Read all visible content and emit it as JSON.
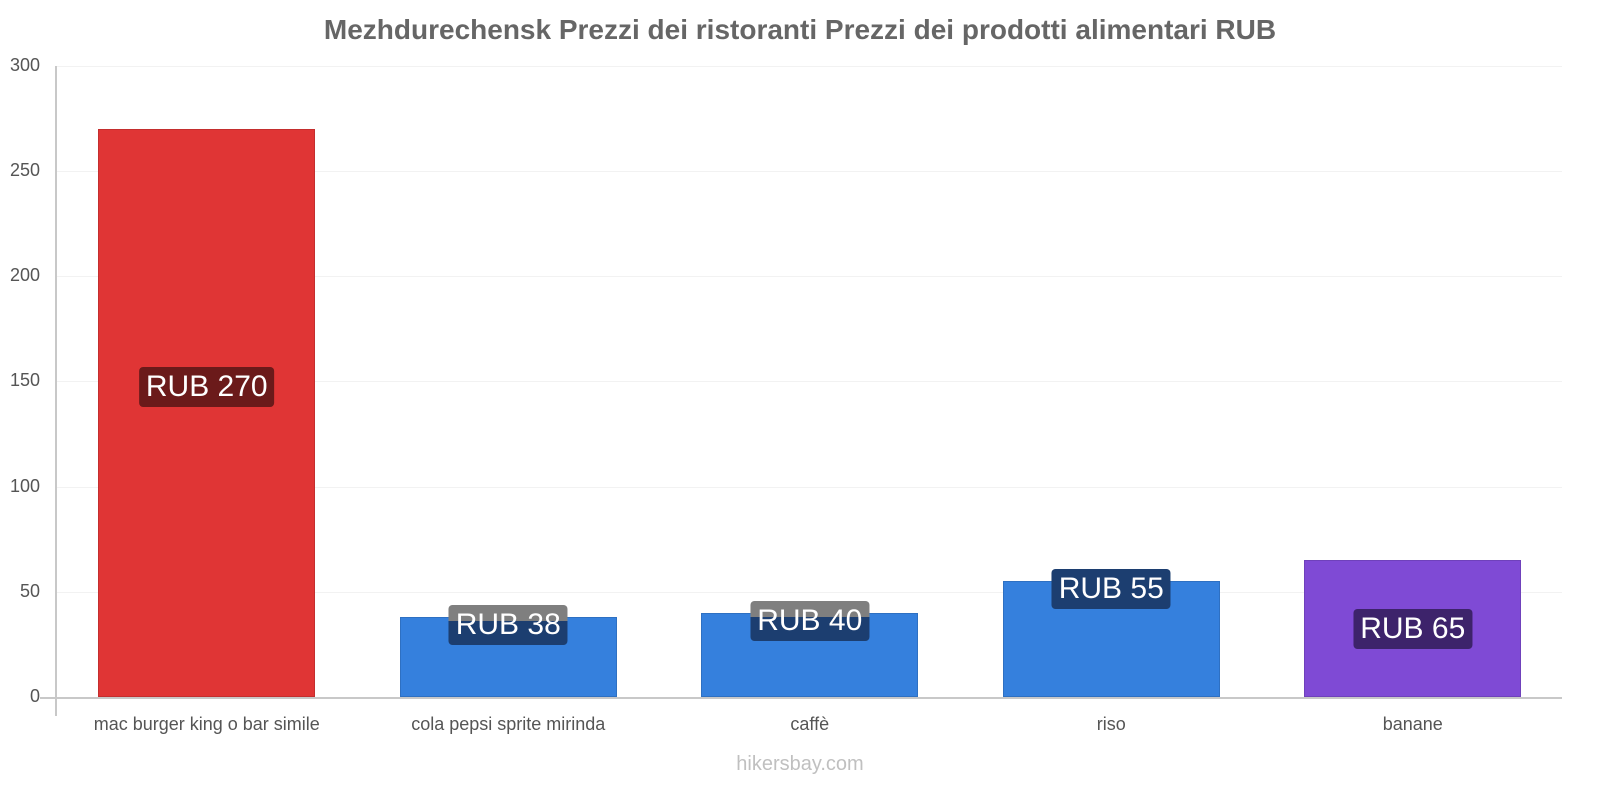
{
  "chart_data": {
    "type": "bar",
    "title": "Mezhdurechensk Prezzi dei ristoranti Prezzi dei prodotti alimentari RUB",
    "xlabel": "",
    "ylabel": "",
    "ylim": [
      0,
      300
    ],
    "yticks": [
      "0",
      "50",
      "100",
      "150",
      "200",
      "250",
      "300"
    ],
    "grid": true,
    "legend": null,
    "categories": [
      "mac burger king o bar simile",
      "cola pepsi sprite mirinda",
      "caffè",
      "riso",
      "banane"
    ],
    "values": [
      270,
      38,
      40,
      55,
      65
    ],
    "data_labels": [
      "RUB 270",
      "RUB 38",
      "RUB 40",
      "RUB 55",
      "RUB 65"
    ],
    "bar_colors": [
      "#e03535",
      "#3580dd",
      "#3580dd",
      "#3580dd",
      "#7f4ad5"
    ],
    "label_colors": [
      "#6b1a1a",
      "#1c3e70",
      "#1c3e70",
      "#1c3e70",
      "#3d236b"
    ],
    "watermark": "hikersbay.com"
  }
}
